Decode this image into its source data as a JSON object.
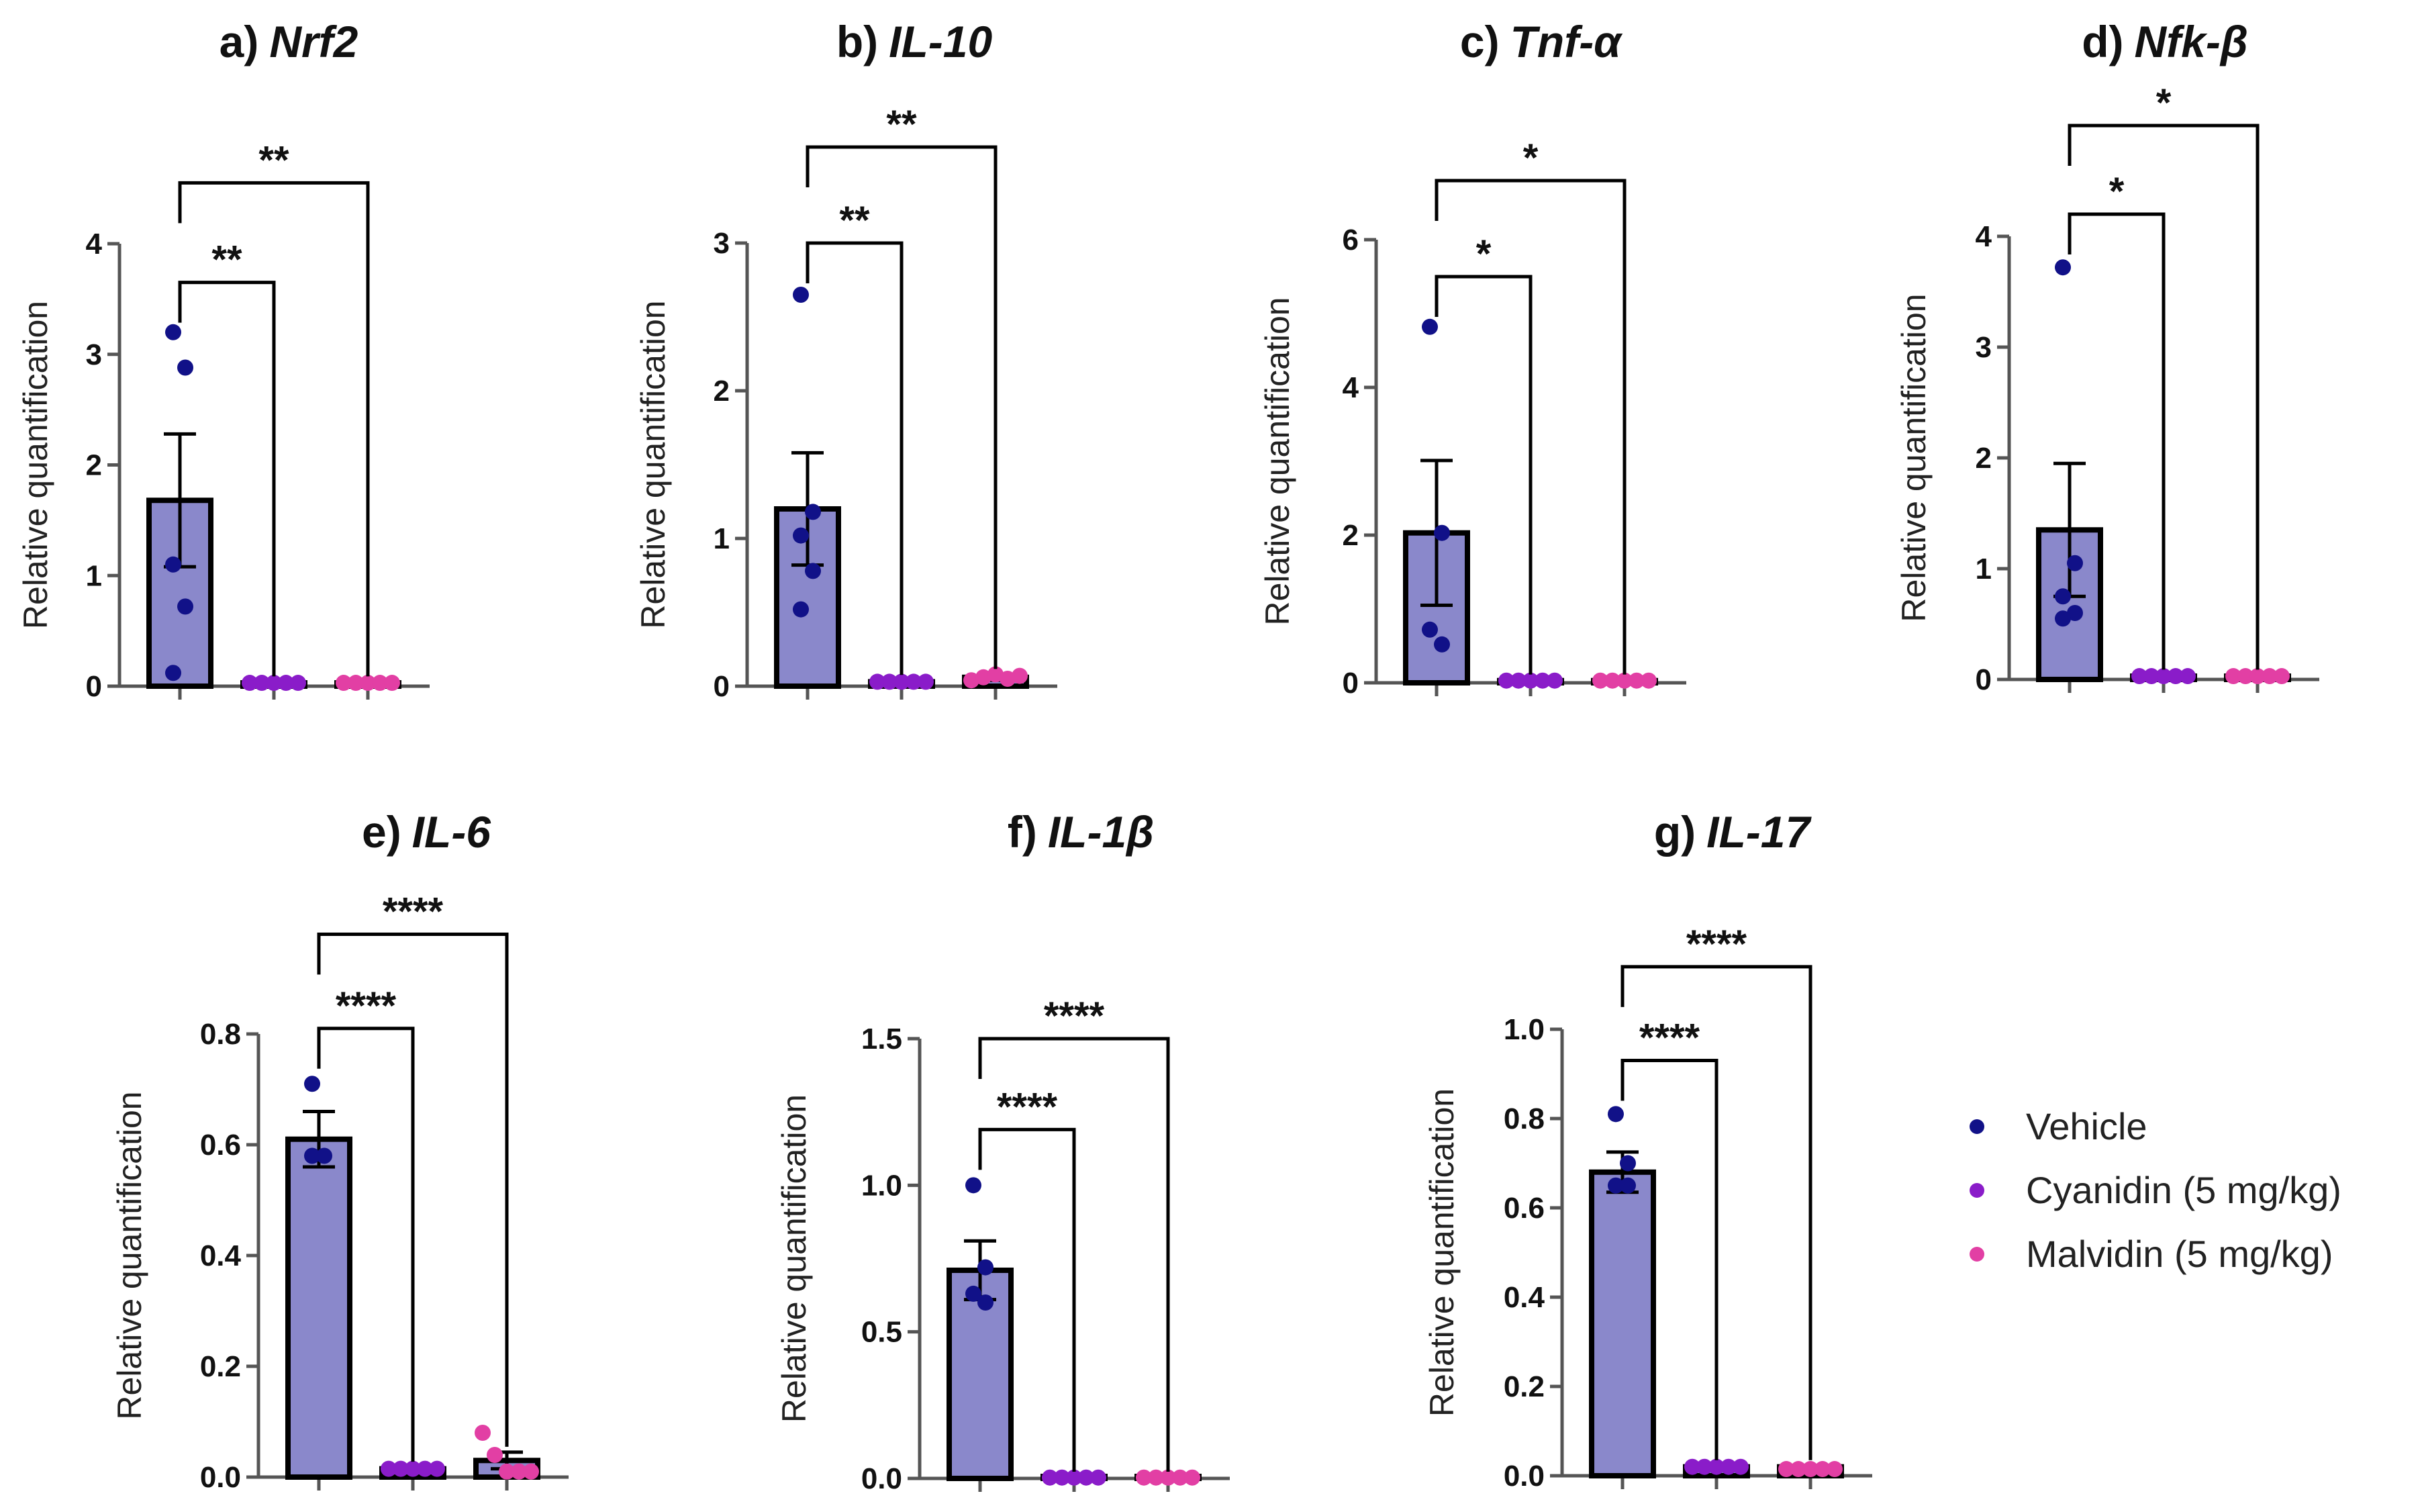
{
  "groups": [
    "Vehicle",
    "Cyanidin (5 mg/kg)",
    "Malvidin (5 mg/kg)"
  ],
  "colors": {
    "bar_fill": "#8a88cb",
    "bar_edge": "#000000",
    "Vehicle": "#111188",
    "Cyanidin (5 mg/kg)": "#8a1cc9",
    "Malvidin (5 mg/kg)": "#e23fa4"
  },
  "legend": {
    "items": [
      "Vehicle",
      "Cyanidin (5 mg/kg)",
      "Malvidin (5 mg/kg)"
    ],
    "position": "right"
  },
  "chart_data": [
    {
      "type": "bar",
      "panel": "a)",
      "gene": "Nrf2",
      "ylabel": "Relative quantification",
      "ylim": [
        0,
        4
      ],
      "yticks": [
        "0",
        "1",
        "2",
        "3",
        "4"
      ],
      "ytick_values": [
        0,
        1,
        2,
        3,
        4
      ],
      "categories": [
        "Vehicle",
        "Cyanidin (5 mg/kg)",
        "Malvidin (5 mg/kg)"
      ],
      "means": [
        1.68,
        0.03,
        0.03
      ],
      "sem": [
        0.6,
        0.01,
        0.01
      ],
      "points": [
        [
          3.2,
          2.88,
          1.1,
          0.72,
          0.12
        ],
        [
          0.03,
          0.03,
          0.03,
          0.03,
          0.03
        ],
        [
          0.03,
          0.03,
          0.03,
          0.03,
          0.03
        ]
      ],
      "comparisons": [
        {
          "from": 0,
          "to": 1,
          "label": "**",
          "y": 3.65
        },
        {
          "from": 0,
          "to": 2,
          "label": "**",
          "y": 4.55
        }
      ]
    },
    {
      "type": "bar",
      "panel": "b)",
      "gene": "IL-10",
      "ylabel": "Relative quantification",
      "ylim": [
        0,
        3
      ],
      "yticks": [
        "0",
        "1",
        "2",
        "3"
      ],
      "ytick_values": [
        0,
        1,
        2,
        3
      ],
      "categories": [
        "Vehicle",
        "Cyanidin (5 mg/kg)",
        "Malvidin (5 mg/kg)"
      ],
      "means": [
        1.2,
        0.03,
        0.06
      ],
      "sem": [
        0.38,
        0.01,
        0.02
      ],
      "points": [
        [
          2.65,
          1.18,
          1.02,
          0.78,
          0.52
        ],
        [
          0.03,
          0.03,
          0.03,
          0.03,
          0.03
        ],
        [
          0.04,
          0.06,
          0.08,
          0.05,
          0.07
        ]
      ],
      "comparisons": [
        {
          "from": 0,
          "to": 1,
          "label": "**",
          "y": 3.0
        },
        {
          "from": 0,
          "to": 2,
          "label": "**",
          "y": 3.65
        }
      ]
    },
    {
      "type": "bar",
      "panel": "c)",
      "gene": "Tnf-α",
      "ylabel": "Relative quantification",
      "ylim": [
        0,
        6
      ],
      "yticks": [
        "0",
        "2",
        "4",
        "6"
      ],
      "ytick_values": [
        0,
        2,
        4,
        6
      ],
      "categories": [
        "Vehicle",
        "Cyanidin (5 mg/kg)",
        "Malvidin (5 mg/kg)"
      ],
      "means": [
        2.03,
        0.03,
        0.03
      ],
      "sem": [
        0.98,
        0.01,
        0.01
      ],
      "points": [
        [
          4.82,
          2.03,
          0.72,
          0.52
        ],
        [
          0.03,
          0.03,
          0.03,
          0.03,
          0.03
        ],
        [
          0.03,
          0.03,
          0.03,
          0.03,
          0.03
        ]
      ],
      "comparisons": [
        {
          "from": 0,
          "to": 1,
          "label": "*",
          "y": 5.5
        },
        {
          "from": 0,
          "to": 2,
          "label": "*",
          "y": 6.8
        }
      ]
    },
    {
      "type": "bar",
      "panel": "d)",
      "gene": "Nfk-β",
      "ylabel": "Relative quantification",
      "ylim": [
        0,
        4
      ],
      "yticks": [
        "0",
        "1",
        "2",
        "3",
        "4"
      ],
      "ytick_values": [
        0,
        1,
        2,
        3,
        4
      ],
      "categories": [
        "Vehicle",
        "Cyanidin (5 mg/kg)",
        "Malvidin (5 mg/kg)"
      ],
      "means": [
        1.35,
        0.03,
        0.03
      ],
      "sem": [
        0.6,
        0.01,
        0.01
      ],
      "points": [
        [
          3.72,
          1.05,
          0.75,
          0.6,
          0.55
        ],
        [
          0.03,
          0.03,
          0.03,
          0.03,
          0.03
        ],
        [
          0.03,
          0.03,
          0.03,
          0.03,
          0.03
        ]
      ],
      "comparisons": [
        {
          "from": 0,
          "to": 1,
          "label": "*",
          "y": 4.2
        },
        {
          "from": 0,
          "to": 2,
          "label": "*",
          "y": 5.0
        }
      ]
    },
    {
      "type": "bar",
      "panel": "e)",
      "gene": "IL-6",
      "ylabel": "Relative quantification",
      "ylim": [
        0,
        0.8
      ],
      "yticks": [
        "0.0",
        "0.2",
        "0.4",
        "0.6",
        "0.8"
      ],
      "ytick_values": [
        0,
        0.2,
        0.4,
        0.6,
        0.8
      ],
      "categories": [
        "Vehicle",
        "Cyanidin (5 mg/kg)",
        "Malvidin (5 mg/kg)"
      ],
      "means": [
        0.61,
        0.015,
        0.03
      ],
      "sem": [
        0.05,
        0.003,
        0.015
      ],
      "points": [
        [
          0.71,
          0.58,
          0.58
        ],
        [
          0.015,
          0.015,
          0.015,
          0.015,
          0.015
        ],
        [
          0.08,
          0.04,
          0.01,
          0.01,
          0.01
        ]
      ],
      "comparisons": [
        {
          "from": 0,
          "to": 1,
          "label": "****",
          "y": 0.81
        },
        {
          "from": 0,
          "to": 2,
          "label": "****",
          "y": 0.98
        }
      ]
    },
    {
      "type": "bar",
      "panel": "f)",
      "gene": "IL-1β",
      "ylabel": "Relative quantification",
      "ylim": [
        0,
        1.5
      ],
      "yticks": [
        "0.0",
        "0.5",
        "1.0",
        "1.5"
      ],
      "ytick_values": [
        0,
        0.5,
        1.0,
        1.5
      ],
      "categories": [
        "Vehicle",
        "Cyanidin (5 mg/kg)",
        "Malvidin (5 mg/kg)"
      ],
      "means": [
        0.71,
        0.003,
        0.003
      ],
      "sem": [
        0.1,
        0.001,
        0.001
      ],
      "points": [
        [
          1.0,
          0.72,
          0.63,
          0.6
        ],
        [
          0.003,
          0.003,
          0.003,
          0.003,
          0.003
        ],
        [
          0.003,
          0.003,
          0.003,
          0.003,
          0.003
        ]
      ],
      "comparisons": [
        {
          "from": 0,
          "to": 1,
          "label": "****",
          "y": 1.19
        },
        {
          "from": 0,
          "to": 2,
          "label": "****",
          "y": 1.5
        }
      ]
    },
    {
      "type": "bar",
      "panel": "g)",
      "gene": "IL-17",
      "ylabel": "Relative quantification",
      "ylim": [
        0,
        1.0
      ],
      "yticks": [
        "0.0",
        "0.2",
        "0.4",
        "0.6",
        "0.8",
        "1.0"
      ],
      "ytick_values": [
        0,
        0.2,
        0.4,
        0.6,
        0.8,
        1.0
      ],
      "categories": [
        "Vehicle",
        "Cyanidin (5 mg/kg)",
        "Malvidin (5 mg/kg)"
      ],
      "means": [
        0.68,
        0.02,
        0.02
      ],
      "sem": [
        0.045,
        0.003,
        0.003
      ],
      "points": [
        [
          0.81,
          0.7,
          0.65,
          0.65
        ],
        [
          0.02,
          0.02,
          0.02,
          0.02,
          0.02
        ],
        [
          0.015,
          0.015,
          0.015,
          0.015,
          0.015
        ]
      ],
      "comparisons": [
        {
          "from": 0,
          "to": 1,
          "label": "****",
          "y": 0.93
        },
        {
          "from": 0,
          "to": 2,
          "label": "****",
          "y": 1.14
        }
      ]
    }
  ]
}
